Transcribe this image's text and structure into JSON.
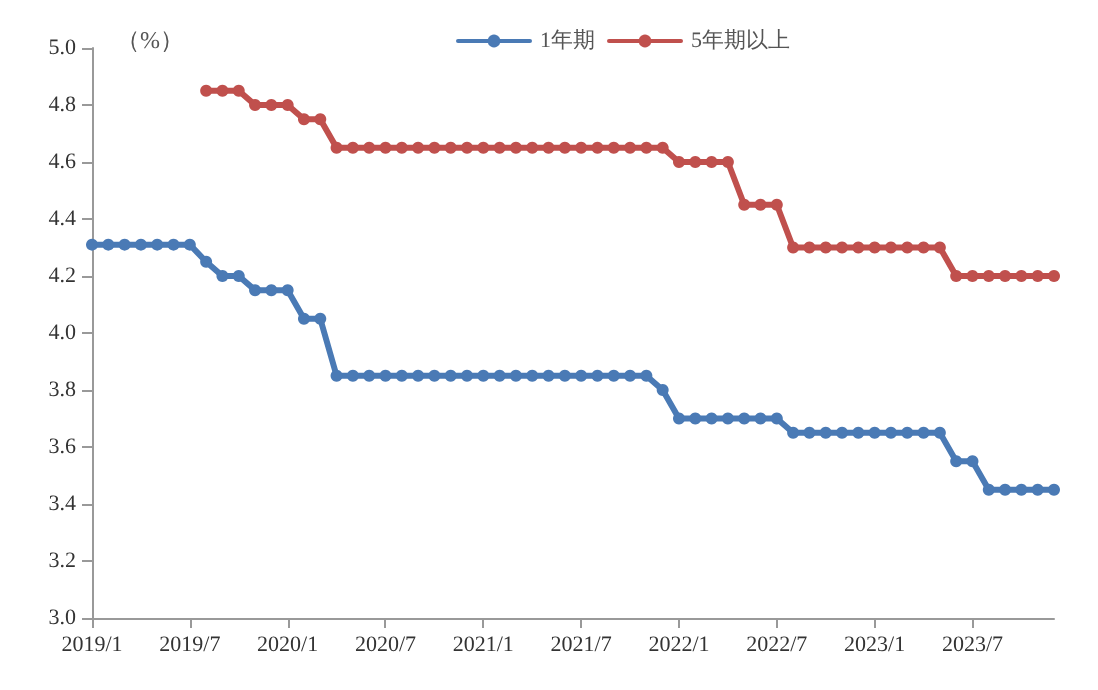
{
  "chart_data": {
    "type": "line",
    "ylabel": "（%）",
    "categories": [
      "2019/1",
      null,
      null,
      null,
      null,
      null,
      "2019/7",
      null,
      null,
      null,
      null,
      null,
      "2020/1",
      null,
      null,
      null,
      null,
      null,
      "2020/7",
      null,
      null,
      null,
      null,
      null,
      "2021/1",
      null,
      null,
      null,
      null,
      null,
      "2021/7",
      null,
      null,
      null,
      null,
      null,
      "2022/1",
      null,
      null,
      null,
      null,
      null,
      "2022/7",
      null,
      null,
      null,
      null,
      null,
      "2023/1",
      null,
      null,
      null,
      null,
      null,
      "2023/7",
      null,
      null,
      null,
      null,
      null
    ],
    "series": [
      {
        "name": "1年期",
        "color": "#4a7ab5",
        "values": [
          4.31,
          4.31,
          4.31,
          4.31,
          4.31,
          4.31,
          4.31,
          4.25,
          4.2,
          4.2,
          4.15,
          4.15,
          4.15,
          4.05,
          4.05,
          3.85,
          3.85,
          3.85,
          3.85,
          3.85,
          3.85,
          3.85,
          3.85,
          3.85,
          3.85,
          3.85,
          3.85,
          3.85,
          3.85,
          3.85,
          3.85,
          3.85,
          3.85,
          3.85,
          3.85,
          3.8,
          3.7,
          3.7,
          3.7,
          3.7,
          3.7,
          3.7,
          3.7,
          3.65,
          3.65,
          3.65,
          3.65,
          3.65,
          3.65,
          3.65,
          3.65,
          3.65,
          3.65,
          3.55,
          3.55,
          3.45,
          3.45,
          3.45,
          3.45,
          3.45
        ]
      },
      {
        "name": "5年期以上",
        "color": "#c0504d",
        "values": [
          null,
          null,
          null,
          null,
          null,
          null,
          null,
          4.85,
          4.85,
          4.85,
          4.8,
          4.8,
          4.8,
          4.75,
          4.75,
          4.65,
          4.65,
          4.65,
          4.65,
          4.65,
          4.65,
          4.65,
          4.65,
          4.65,
          4.65,
          4.65,
          4.65,
          4.65,
          4.65,
          4.65,
          4.65,
          4.65,
          4.65,
          4.65,
          4.65,
          4.65,
          4.6,
          4.6,
          4.6,
          4.6,
          4.45,
          4.45,
          4.45,
          4.3,
          4.3,
          4.3,
          4.3,
          4.3,
          4.3,
          4.3,
          4.3,
          4.3,
          4.3,
          4.2,
          4.2,
          4.2,
          4.2,
          4.2,
          4.2,
          4.2
        ]
      }
    ],
    "ylim": [
      3,
      5
    ],
    "yticks": [
      {
        "value": 3,
        "label": "3.0"
      },
      {
        "value": 3.2,
        "label": "3.2"
      },
      {
        "value": 3.4,
        "label": "3.4"
      },
      {
        "value": 3.6,
        "label": "3.6"
      },
      {
        "value": 3.8,
        "label": "3.8"
      },
      {
        "value": 4,
        "label": "4.0"
      },
      {
        "value": 4.2,
        "label": "4.2"
      },
      {
        "value": 4.4,
        "label": "4.4"
      },
      {
        "value": 4.6,
        "label": "4.6"
      },
      {
        "value": 4.8,
        "label": "4.8"
      },
      {
        "value": 5,
        "label": "5.0"
      }
    ],
    "grid": false,
    "legend": "top",
    "marker": "circle",
    "line_style": "solid"
  }
}
